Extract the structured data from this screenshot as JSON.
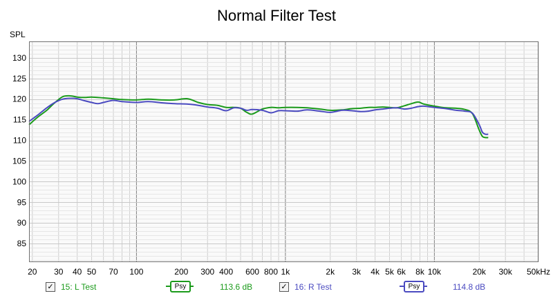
{
  "chart_data": {
    "type": "line",
    "title": "Normal Filter Test",
    "ylabel": "SPL",
    "xscale": "log",
    "xlim": [
      19,
      50000
    ],
    "ylim": [
      80.5,
      134
    ],
    "y_ticks": [
      85,
      90,
      95,
      100,
      105,
      110,
      115,
      120,
      125,
      130
    ],
    "x_ticks": [
      {
        "value": 20,
        "label": "20"
      },
      {
        "value": 30,
        "label": "30"
      },
      {
        "value": 40,
        "label": "40"
      },
      {
        "value": 50,
        "label": "50"
      },
      {
        "value": 70,
        "label": "70"
      },
      {
        "value": 100,
        "label": "100"
      },
      {
        "value": 200,
        "label": "200"
      },
      {
        "value": 300,
        "label": "300"
      },
      {
        "value": 400,
        "label": "400"
      },
      {
        "value": 600,
        "label": "600"
      },
      {
        "value": 800,
        "label": "800"
      },
      {
        "value": 1000,
        "label": "1k"
      },
      {
        "value": 2000,
        "label": "2k"
      },
      {
        "value": 3000,
        "label": "3k"
      },
      {
        "value": 4000,
        "label": "4k"
      },
      {
        "value": 5000,
        "label": "5k"
      },
      {
        "value": 6000,
        "label": "6k"
      },
      {
        "value": 8000,
        "label": "8k"
      },
      {
        "value": 10000,
        "label": "10k"
      },
      {
        "value": 20000,
        "label": "20k"
      },
      {
        "value": 30000,
        "label": "30k"
      },
      {
        "value": 50000,
        "label": "50kHz"
      }
    ],
    "grid": true,
    "series": [
      {
        "name": "15: L Test",
        "color": "#1a9a1a",
        "x": [
          19,
          22,
          25,
          28,
          32,
          36,
          40,
          45,
          50,
          60,
          70,
          80,
          100,
          120,
          150,
          180,
          220,
          260,
          300,
          350,
          400,
          450,
          500,
          550,
          600,
          700,
          800,
          900,
          1000,
          1200,
          1400,
          1700,
          2000,
          2400,
          2800,
          3200,
          3600,
          4000,
          4500,
          5000,
          5600,
          6300,
          7000,
          7800,
          8500,
          10000,
          12000,
          14000,
          16000,
          18000,
          20000,
          21000,
          22000,
          23000
        ],
        "values": [
          113.8,
          115.8,
          117.3,
          119.0,
          120.6,
          120.8,
          120.5,
          120.4,
          120.5,
          120.3,
          120.1,
          119.9,
          119.8,
          120.0,
          119.8,
          119.8,
          120.1,
          119.2,
          118.7,
          118.5,
          118.0,
          118.0,
          117.8,
          116.8,
          116.4,
          117.6,
          118.0,
          117.9,
          118.0,
          118.0,
          117.9,
          117.6,
          117.3,
          117.4,
          117.7,
          117.8,
          118.0,
          118.0,
          118.1,
          118.0,
          117.9,
          118.4,
          118.9,
          119.3,
          118.8,
          118.3,
          117.9,
          117.8,
          117.5,
          116.5,
          112.5,
          111.0,
          110.7,
          110.7
        ]
      },
      {
        "name": "16: R Test",
        "color": "#4a4ac0",
        "x": [
          19,
          22,
          25,
          28,
          32,
          36,
          40,
          45,
          50,
          55,
          60,
          70,
          80,
          100,
          120,
          150,
          180,
          220,
          260,
          300,
          350,
          400,
          450,
          500,
          550,
          600,
          700,
          800,
          900,
          1000,
          1200,
          1400,
          1700,
          2000,
          2400,
          2800,
          3200,
          3600,
          4000,
          4500,
          5000,
          5600,
          6300,
          7000,
          7800,
          8500,
          10000,
          12000,
          14000,
          16000,
          18000,
          20000,
          21000,
          22000,
          23000
        ],
        "values": [
          114.6,
          116.3,
          117.9,
          119.1,
          120.0,
          120.2,
          120.1,
          119.6,
          119.2,
          118.9,
          119.2,
          119.7,
          119.4,
          119.2,
          119.4,
          119.1,
          118.9,
          118.8,
          118.5,
          118.1,
          117.8,
          117.2,
          117.9,
          117.8,
          117.3,
          117.5,
          117.3,
          116.7,
          117.2,
          117.2,
          117.1,
          117.4,
          117.1,
          116.8,
          117.3,
          117.2,
          117.0,
          117.1,
          117.4,
          117.6,
          117.8,
          117.9,
          117.6,
          117.8,
          118.2,
          118.3,
          118.0,
          117.7,
          117.3,
          117.1,
          116.6,
          113.8,
          112.0,
          111.5,
          111.5
        ]
      }
    ]
  },
  "legend": [
    {
      "checked": true,
      "check_glyph": "✓",
      "name": "15: L Test",
      "psy_label": "Psy",
      "level": "113.6 dB",
      "color": "#1a9a1a"
    },
    {
      "checked": true,
      "check_glyph": "✓",
      "name": "16: R Test",
      "psy_label": "Psy",
      "level": "114.8 dB",
      "color": "#4a4ac0"
    }
  ]
}
